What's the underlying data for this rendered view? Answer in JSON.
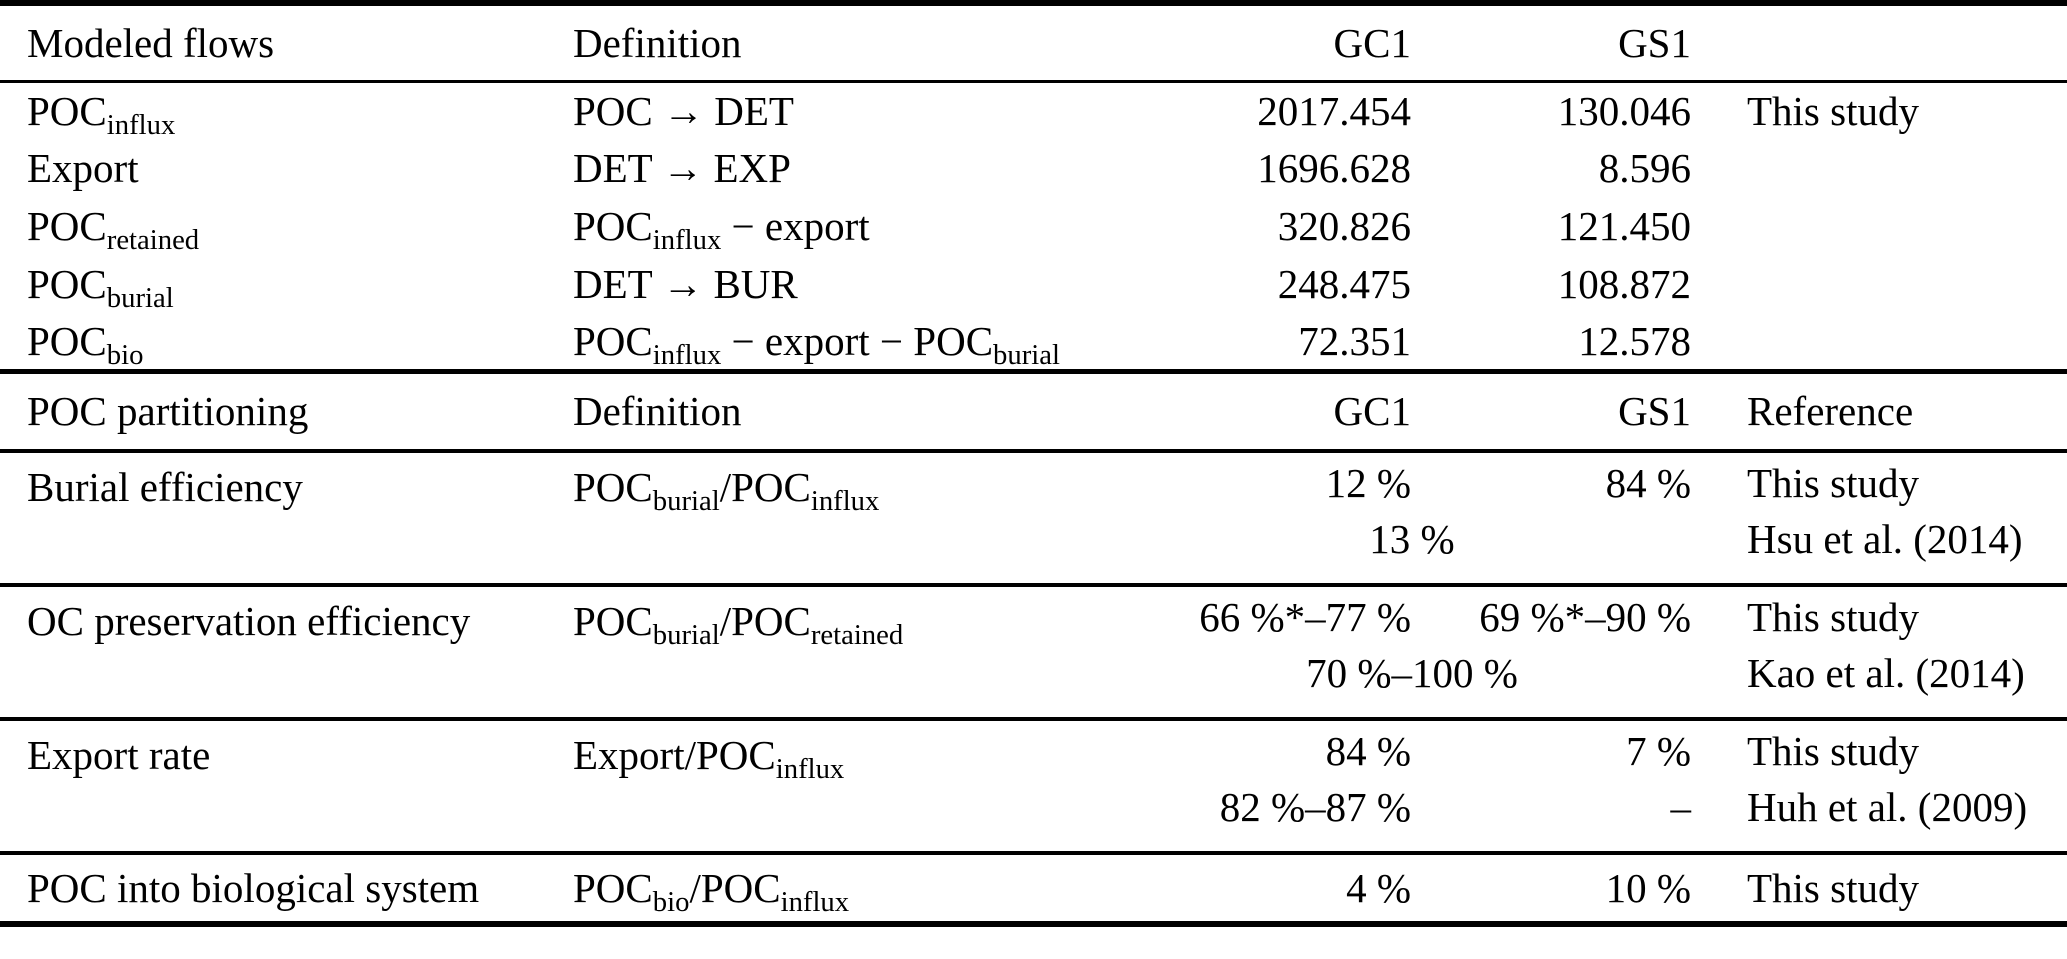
{
  "page": {
    "background_color": "#ffffff",
    "text_color": "#000000",
    "rule_color": "#000000"
  },
  "flows": {
    "header": {
      "title": "Modeled flows",
      "definition": "Definition",
      "gc1": "GC1",
      "gs1": "GS1",
      "reference": ""
    },
    "rows": [
      {
        "name": [
          "POC",
          {
            "sub": "influx"
          }
        ],
        "definition": [
          "POC → DET"
        ],
        "gc1": "2017.454",
        "gs1": "130.046",
        "reference": "This study"
      },
      {
        "name": [
          "Export"
        ],
        "definition": [
          "DET → EXP"
        ],
        "gc1": "1696.628",
        "gs1": "8.596",
        "reference": ""
      },
      {
        "name": [
          "POC",
          {
            "sub": "retained"
          }
        ],
        "definition": [
          "POC",
          {
            "sub": "influx"
          },
          " − export"
        ],
        "gc1": "320.826",
        "gs1": "121.450",
        "reference": ""
      },
      {
        "name": [
          "POC",
          {
            "sub": "burial"
          }
        ],
        "definition": [
          "DET → BUR"
        ],
        "gc1": "248.475",
        "gs1": "108.872",
        "reference": ""
      },
      {
        "name": [
          "POC",
          {
            "sub": "bio"
          }
        ],
        "definition": [
          "POC",
          {
            "sub": "influx"
          },
          " − export − POC",
          {
            "sub": "burial"
          }
        ],
        "gc1": "72.351",
        "gs1": "12.578",
        "reference": ""
      }
    ]
  },
  "partitioning": {
    "header": {
      "title": "POC partitioning",
      "definition": "Definition",
      "gc1": "GC1",
      "gs1": "GS1",
      "reference": "Reference"
    },
    "sections": [
      {
        "name": [
          "Burial efficiency"
        ],
        "definition": [
          "POC",
          {
            "sub": "burial"
          },
          "/POC",
          {
            "sub": "influx"
          }
        ],
        "row1": {
          "gc1": "12 %",
          "gs1": "84 %",
          "reference": "This study"
        },
        "row2": {
          "span": "13 %",
          "reference": "Hsu et al. (2014)"
        }
      },
      {
        "name": [
          "OC preservation efficiency"
        ],
        "definition": [
          "POC",
          {
            "sub": "burial"
          },
          "/POC",
          {
            "sub": "retained"
          }
        ],
        "row1": {
          "gc1": "66 %*–77 %",
          "gs1": "69 %*–90 %",
          "reference": "This study"
        },
        "row2": {
          "span": "70 %–100 %",
          "reference": "Kao et al. (2014)"
        }
      },
      {
        "name": [
          "Export rate"
        ],
        "definition": [
          "Export/POC",
          {
            "sub": "influx"
          }
        ],
        "row1": {
          "gc1": "84 %",
          "gs1": "7 %",
          "reference": "This study"
        },
        "row2": {
          "gc1": "82 %–87 %",
          "gs1": "–",
          "reference": "Huh et al. (2009)"
        }
      },
      {
        "name": [
          "POC into biological system"
        ],
        "definition": [
          "POC",
          {
            "sub": "bio"
          },
          "/POC",
          {
            "sub": "influx"
          }
        ],
        "row1": {
          "gc1": "4 %",
          "gs1": "10 %",
          "reference": "This study"
        }
      }
    ]
  }
}
